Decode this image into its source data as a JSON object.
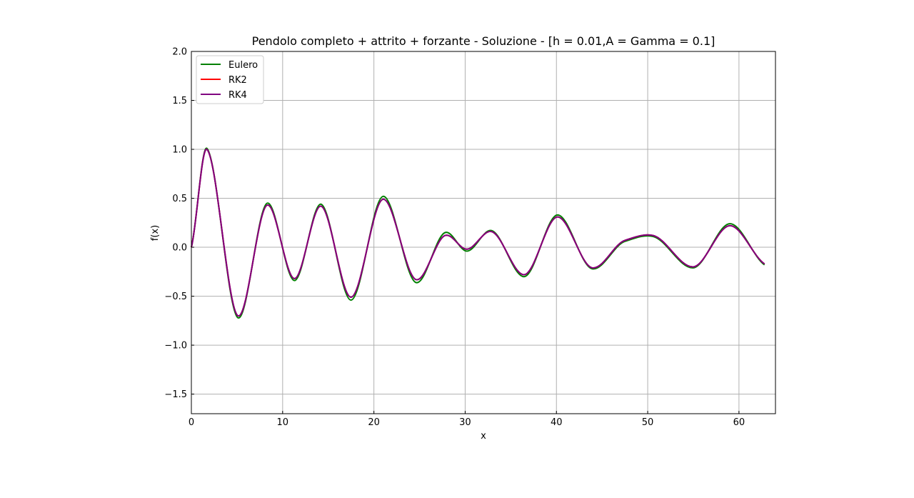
{
  "chart_data": {
    "type": "line",
    "title": "Pendolo completo + attrito + forzante - Soluzione - [h = 0.01,A = Gamma = 0.1]",
    "xlabel": "x",
    "ylabel": "f(x)",
    "xlim": [
      0,
      64
    ],
    "ylim": [
      -1.7,
      2.0
    ],
    "xticks": [
      0,
      10,
      20,
      30,
      40,
      50,
      60
    ],
    "yticks": [
      -1.5,
      -1.0,
      -0.5,
      0.0,
      0.5,
      1.0,
      1.5,
      2.0
    ],
    "xtick_labels": [
      "0",
      "10",
      "20",
      "30",
      "40",
      "50",
      "60"
    ],
    "ytick_labels": [
      "−1.5",
      "−1.0",
      "−0.5",
      "0.0",
      "0.5",
      "1.0",
      "1.5",
      "2.0"
    ],
    "grid": true,
    "legend_position": "top-left",
    "series": [
      {
        "name": "Eulero",
        "color": "#008000",
        "x": [
          0,
          1.7,
          5.1,
          8.3,
          11.3,
          14.2,
          17.5,
          21.0,
          24.6,
          27.8,
          30.2,
          32.9,
          36.5,
          40.1,
          43.9,
          47.5,
          50.6,
          55.0,
          59.0,
          62.8
        ],
        "y": [
          0.0,
          1.01,
          -0.72,
          0.45,
          -0.34,
          0.44,
          -0.54,
          0.52,
          -0.36,
          0.15,
          -0.04,
          0.17,
          -0.3,
          0.33,
          -0.22,
          0.06,
          0.11,
          -0.21,
          0.24,
          -0.18
        ]
      },
      {
        "name": "RK2",
        "color": "#ff0000",
        "x": [
          0,
          1.7,
          5.1,
          8.3,
          11.3,
          14.2,
          17.5,
          21.0,
          24.6,
          27.8,
          30.2,
          32.9,
          36.5,
          40.1,
          43.9,
          47.5,
          50.6,
          55.0,
          59.0,
          62.8
        ],
        "y": [
          0.0,
          1.0,
          -0.7,
          0.43,
          -0.32,
          0.42,
          -0.51,
          0.49,
          -0.33,
          0.12,
          -0.02,
          0.16,
          -0.28,
          0.31,
          -0.21,
          0.07,
          0.12,
          -0.2,
          0.22,
          -0.17
        ]
      },
      {
        "name": "RK4",
        "color": "#800080",
        "x": [
          0,
          1.7,
          5.1,
          8.3,
          11.3,
          14.2,
          17.5,
          21.0,
          24.6,
          27.8,
          30.2,
          32.9,
          36.5,
          40.1,
          43.9,
          47.5,
          50.6,
          55.0,
          59.0,
          62.8
        ],
        "y": [
          0.0,
          1.0,
          -0.7,
          0.43,
          -0.32,
          0.42,
          -0.51,
          0.49,
          -0.33,
          0.12,
          -0.02,
          0.16,
          -0.28,
          0.31,
          -0.21,
          0.07,
          0.12,
          -0.2,
          0.22,
          -0.17
        ]
      }
    ]
  }
}
